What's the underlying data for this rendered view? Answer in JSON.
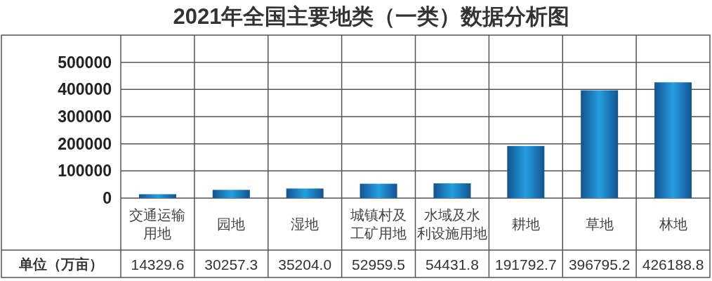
{
  "chart_data": {
    "type": "bar",
    "title": "2021年全国主要地类（一类）数据分析图",
    "ylabel": "单位（万亩）",
    "categories": [
      "交通运输用地",
      "园地",
      "湿地",
      "城镇村及工矿用地",
      "水域及水利设施用地",
      "耕地",
      "草地",
      "林地"
    ],
    "values": [
      14329.6,
      30257.3,
      35204.0,
      52959.5,
      54431.8,
      191792.7,
      396795.2,
      426188.8
    ],
    "value_labels": [
      "14329.6",
      "30257.3",
      "35204.0",
      "52959.5",
      "54431.8",
      "191792.7",
      "396795.2",
      "426188.8"
    ],
    "color": "#1a78cc",
    "ylim": [
      0,
      600000
    ],
    "yticks": [
      0,
      100000,
      200000,
      300000,
      400000,
      500000
    ],
    "grid": "y"
  }
}
